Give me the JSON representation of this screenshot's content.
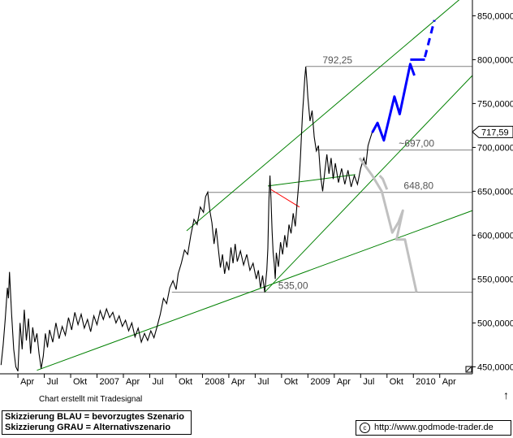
{
  "chart_data": {
    "type": "line",
    "y_axis_labels": [
      "850,0000",
      "800,0000",
      "750,0000",
      "700,0000",
      "650,0000",
      "600,0000",
      "550,0000",
      "500,0000",
      "450,0000"
    ],
    "y_axis_values": [
      850,
      800,
      750,
      700,
      650,
      600,
      550,
      500,
      450
    ],
    "ylim": [
      442,
      868
    ],
    "current_price_label": "717,59",
    "current_price": 717.59,
    "x_axis_labels": [
      {
        "label": "Apr",
        "t": 2006.25
      },
      {
        "label": "Jul",
        "t": 2006.5
      },
      {
        "label": "Okt",
        "t": 2006.75
      },
      {
        "label": "2007",
        "t": 2007.0
      },
      {
        "label": "Apr",
        "t": 2007.25
      },
      {
        "label": "Jul",
        "t": 2007.5
      },
      {
        "label": "Okt",
        "t": 2007.75
      },
      {
        "label": "2008",
        "t": 2008.0
      },
      {
        "label": "Apr",
        "t": 2008.25
      },
      {
        "label": "Jul",
        "t": 2008.5
      },
      {
        "label": "Okt",
        "t": 2008.75
      },
      {
        "label": "2009",
        "t": 2009.0
      },
      {
        "label": "Apr",
        "t": 2009.25
      },
      {
        "label": "Jul",
        "t": 2009.5
      },
      {
        "label": "Okt",
        "t": 2009.75
      },
      {
        "label": "2010",
        "t": 2010.0
      },
      {
        "label": "Apr",
        "t": 2010.25
      }
    ],
    "xlim": [
      2006.08,
      2010.56
    ],
    "price_series": [
      [
        2006.09,
        452
      ],
      [
        2006.11,
        475
      ],
      [
        2006.13,
        505
      ],
      [
        2006.15,
        540
      ],
      [
        2006.16,
        528
      ],
      [
        2006.17,
        558
      ],
      [
        2006.19,
        510
      ],
      [
        2006.21,
        470
      ],
      [
        2006.23,
        450
      ],
      [
        2006.25,
        445
      ],
      [
        2006.27,
        500
      ],
      [
        2006.29,
        470
      ],
      [
        2006.31,
        515
      ],
      [
        2006.33,
        480
      ],
      [
        2006.35,
        505
      ],
      [
        2006.37,
        465
      ],
      [
        2006.39,
        495
      ],
      [
        2006.41,
        478
      ],
      [
        2006.43,
        488
      ],
      [
        2006.45,
        465
      ],
      [
        2006.47,
        448
      ],
      [
        2006.49,
        462
      ],
      [
        2006.51,
        488
      ],
      [
        2006.53,
        472
      ],
      [
        2006.55,
        492
      ],
      [
        2006.58,
        478
      ],
      [
        2006.61,
        500
      ],
      [
        2006.64,
        482
      ],
      [
        2006.67,
        496
      ],
      [
        2006.7,
        486
      ],
      [
        2006.73,
        506
      ],
      [
        2006.76,
        492
      ],
      [
        2006.79,
        512
      ],
      [
        2006.82,
        498
      ],
      [
        2006.85,
        510
      ],
      [
        2006.88,
        494
      ],
      [
        2006.91,
        504
      ],
      [
        2006.94,
        490
      ],
      [
        2006.97,
        508
      ],
      [
        2007.0,
        498
      ],
      [
        2007.03,
        514
      ],
      [
        2007.06,
        504
      ],
      [
        2007.09,
        516
      ],
      [
        2007.12,
        506
      ],
      [
        2007.15,
        512
      ],
      [
        2007.18,
        500
      ],
      [
        2007.21,
        508
      ],
      [
        2007.24,
        496
      ],
      [
        2007.27,
        503
      ],
      [
        2007.3,
        491
      ],
      [
        2007.33,
        500
      ],
      [
        2007.36,
        484
      ],
      [
        2007.39,
        494
      ],
      [
        2007.42,
        478
      ],
      [
        2007.45,
        488
      ],
      [
        2007.48,
        480
      ],
      [
        2007.51,
        491
      ],
      [
        2007.54,
        483
      ],
      [
        2007.57,
        496
      ],
      [
        2007.6,
        510
      ],
      [
        2007.63,
        528
      ],
      [
        2007.66,
        522
      ],
      [
        2007.69,
        540
      ],
      [
        2007.72,
        548
      ],
      [
        2007.75,
        538
      ],
      [
        2007.77,
        556
      ],
      [
        2007.8,
        568
      ],
      [
        2007.83,
        583
      ],
      [
        2007.86,
        578
      ],
      [
        2007.89,
        600
      ],
      [
        2007.92,
        618
      ],
      [
        2007.95,
        612
      ],
      [
        2007.98,
        632
      ],
      [
        2008.01,
        626
      ],
      [
        2008.03,
        644
      ],
      [
        2008.05,
        649
      ],
      [
        2008.07,
        628
      ],
      [
        2008.09,
        614
      ],
      [
        2008.11,
        590
      ],
      [
        2008.13,
        608
      ],
      [
        2008.15,
        585
      ],
      [
        2008.17,
        563
      ],
      [
        2008.19,
        578
      ],
      [
        2008.21,
        556
      ],
      [
        2008.23,
        570
      ],
      [
        2008.25,
        560
      ],
      [
        2008.27,
        586
      ],
      [
        2008.29,
        568
      ],
      [
        2008.31,
        590
      ],
      [
        2008.33,
        570
      ],
      [
        2008.36,
        582
      ],
      [
        2008.39,
        566
      ],
      [
        2008.42,
        578
      ],
      [
        2008.45,
        560
      ],
      [
        2008.48,
        568
      ],
      [
        2008.51,
        550
      ],
      [
        2008.53,
        560
      ],
      [
        2008.55,
        540
      ],
      [
        2008.57,
        554
      ],
      [
        2008.59,
        535
      ],
      [
        2008.61,
        560
      ],
      [
        2008.62,
        585
      ],
      [
        2008.63,
        640
      ],
      [
        2008.64,
        668
      ],
      [
        2008.65,
        640
      ],
      [
        2008.66,
        605
      ],
      [
        2008.67,
        580
      ],
      [
        2008.68,
        568
      ],
      [
        2008.69,
        550
      ],
      [
        2008.7,
        580
      ],
      [
        2008.72,
        564
      ],
      [
        2008.74,
        592
      ],
      [
        2008.76,
        578
      ],
      [
        2008.78,
        600
      ],
      [
        2008.8,
        586
      ],
      [
        2008.82,
        612
      ],
      [
        2008.84,
        602
      ],
      [
        2008.86,
        625
      ],
      [
        2008.88,
        610
      ],
      [
        2008.9,
        640
      ],
      [
        2008.92,
        668
      ],
      [
        2008.93,
        690
      ],
      [
        2008.94,
        716
      ],
      [
        2008.95,
        740
      ],
      [
        2008.96,
        758
      ],
      [
        2008.97,
        778
      ],
      [
        2008.98,
        792
      ],
      [
        2008.99,
        776
      ],
      [
        2009.0,
        757
      ],
      [
        2009.02,
        730
      ],
      [
        2009.04,
        742
      ],
      [
        2009.06,
        712
      ],
      [
        2009.08,
        696
      ],
      [
        2009.1,
        702
      ],
      [
        2009.12,
        668
      ],
      [
        2009.14,
        650
      ],
      [
        2009.16,
        672
      ],
      [
        2009.18,
        692
      ],
      [
        2009.2,
        670
      ],
      [
        2009.22,
        688
      ],
      [
        2009.24,
        664
      ],
      [
        2009.26,
        682
      ],
      [
        2009.29,
        660
      ],
      [
        2009.32,
        676
      ],
      [
        2009.35,
        658
      ],
      [
        2009.38,
        674
      ],
      [
        2009.41,
        655
      ],
      [
        2009.44,
        668
      ],
      [
        2009.47,
        658
      ],
      [
        2009.5,
        676
      ],
      [
        2009.53,
        688
      ],
      [
        2009.55,
        680
      ],
      [
        2009.57,
        702
      ],
      [
        2009.59,
        710
      ],
      [
        2009.61,
        717.59
      ]
    ],
    "channel_upper": {
      "x1": 2007.85,
      "y1": 605,
      "x2": 2010.55,
      "y2": 880
    },
    "channel_lower": {
      "x1": 2008.59,
      "y1": 535,
      "x2": 2010.56,
      "y2": 782
    },
    "long_trendline": {
      "x1": 2006.43,
      "y1": 446,
      "x2": 2010.56,
      "y2": 628
    },
    "short_trendline": {
      "x1": 2008.62,
      "y1": 656,
      "x2": 2009.45,
      "y2": 669
    },
    "red_line": {
      "x1": 2008.65,
      "y1": 652,
      "x2": 2008.92,
      "y2": 632
    },
    "levels": [
      {
        "label": "792,25",
        "value": 792.25,
        "x_from": 2008.98,
        "label_x": 2009.28
      },
      {
        "label": "~697,00",
        "value": 697.0,
        "x_from": 2009.08,
        "label_x": 2010.03
      },
      {
        "label": "648,80",
        "value": 648.8,
        "x_from": 2008.05,
        "label_x": 2010.05
      },
      {
        "label": "535,00",
        "value": 535.0,
        "x_from": 2007.71,
        "label_x": 2008.86
      }
    ],
    "blue_scenario": [
      [
        2009.61,
        717
      ],
      [
        2009.66,
        728
      ],
      [
        2009.72,
        708
      ],
      [
        2009.82,
        758
      ],
      [
        2009.87,
        738
      ],
      [
        2009.97,
        795
      ],
      [
        2010.01,
        782
      ]
    ],
    "blue_breakout": [
      [
        2009.97,
        800
      ],
      [
        2010.11,
        800
      ]
    ],
    "blue_dashed": [
      [
        2010.11,
        803
      ],
      [
        2010.2,
        845
      ]
    ],
    "grey_scenario": [
      [
        2009.49,
        688
      ],
      [
        2009.55,
        678
      ],
      [
        2009.61,
        668
      ],
      [
        2009.7,
        650
      ],
      [
        2009.8,
        603
      ],
      [
        2009.86,
        615
      ],
      [
        2009.9,
        628
      ],
      [
        2009.84,
        595
      ],
      [
        2009.92,
        595
      ],
      [
        2010.03,
        535
      ]
    ],
    "grey_side": [
      [
        2009.68,
        668
      ],
      [
        2009.71,
        664
      ],
      [
        2009.75,
        652
      ]
    ],
    "colors": {
      "price": "#000000",
      "channel": "#008000",
      "level": "#808080",
      "blue": "#0000ff",
      "grey": "#c0c0c0",
      "red": "#ff0000"
    }
  },
  "footer": {
    "credit": "Chart erstellt mit Tradesignal",
    "legend_blue": "Skizzierung BLAU = bevorzugtes Szenario",
    "legend_grey": "Skizzierung GRAU = Alternativszenario",
    "copyright_symbol": "c",
    "url": "http://www.godmode-trader.de"
  }
}
